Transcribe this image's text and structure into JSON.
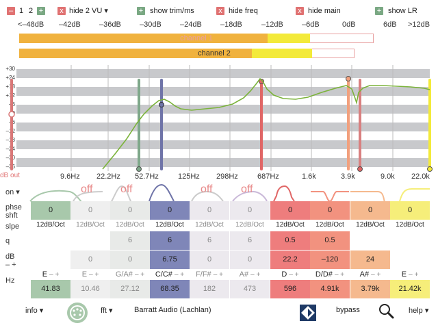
{
  "topbar": {
    "minus": "–",
    "ch1": "1",
    "ch2": "2",
    "plus": "+",
    "hide_vu_x": "x",
    "hide_vu": "hide 2 VU ▾",
    "show_trim_plus": "+",
    "show_trim": "show trim/ms",
    "hide_freq_x": "x",
    "hide_freq": "hide freq",
    "hide_main_x": "x",
    "hide_main": "hide main",
    "show_lr_plus": "+",
    "show_lr": "show LR"
  },
  "db_scale": [
    "<–48dB",
    "–42dB",
    "–36dB",
    "–30dB",
    "–24dB",
    "–18dB",
    "–12dB",
    "–6dB",
    "0dB",
    "6dB",
    ">12dB"
  ],
  "vu": {
    "channel1_label": "channel 1",
    "channel2_label": "channel 2",
    "channel1_level_db": -6,
    "channel2_level_db": -6
  },
  "graph": {
    "y_labels": [
      "+30",
      "+24",
      "+18",
      "+12",
      "+6",
      "+0",
      "–6",
      "–12",
      "–18",
      "–24",
      "–30",
      "–36"
    ],
    "db_out_label": "dB out",
    "freq_labels": [
      "9.6Hz",
      "22.2Hz",
      "52.7Hz",
      "125Hz",
      "298Hz",
      "687Hz",
      "1.6k",
      "3.9k",
      "9.0k",
      "22.0k"
    ]
  },
  "bands": {
    "on_label": "on ▾",
    "off_labels": [
      "off",
      "off",
      "off",
      "off"
    ],
    "rows": {
      "phase_label_1": "phse",
      "phase_label_2": "shft",
      "slope_label": "slpe",
      "q_label": "q",
      "db_label_1": "dB",
      "db_label_2": "– +",
      "hz_label": "Hz"
    },
    "phase": [
      "0",
      "0",
      "0",
      "0",
      "0",
      "0",
      "0",
      "0",
      "0",
      "0"
    ],
    "slope": [
      "12dB/Oct",
      "12dB/Oct",
      "12dB/Oct",
      "12dB/Oct",
      "12dB/Oct",
      "12dB/Oct",
      "12dB/Oct",
      "12dB/Oct",
      "12dB/Oct",
      "12dB/Oct"
    ],
    "q": [
      "",
      "",
      "6",
      "6",
      "6",
      "6",
      "0.5",
      "0.5",
      "",
      ""
    ],
    "db": [
      "",
      "0",
      "0",
      "6.75",
      "0",
      "0",
      "22.2",
      "–120",
      "24",
      ""
    ],
    "note": [
      "E",
      "E",
      "G/A#",
      "C/C#",
      "F/F#",
      "A#",
      "D",
      "D/D#",
      "A#",
      "E"
    ],
    "note_pm": "– +",
    "hz": [
      "41.83",
      "10.46",
      "27.12",
      "68.35",
      "182",
      "473",
      "596",
      "4.91k",
      "3.79k",
      "21.42k"
    ],
    "colors": [
      "#a8c8ab",
      "#efefef",
      "#e8eae8",
      "#7f86b8",
      "#ece9ee",
      "#ece9ee",
      "#ee7d7d",
      "#f2927f",
      "#f5b98e",
      "#f6ee7a"
    ]
  },
  "bottombar": {
    "info": "info ▾",
    "fft": "fft ▾",
    "brand": "Barratt Audio (Lachlan)",
    "bypass": "bypass",
    "help": "help ▾"
  }
}
